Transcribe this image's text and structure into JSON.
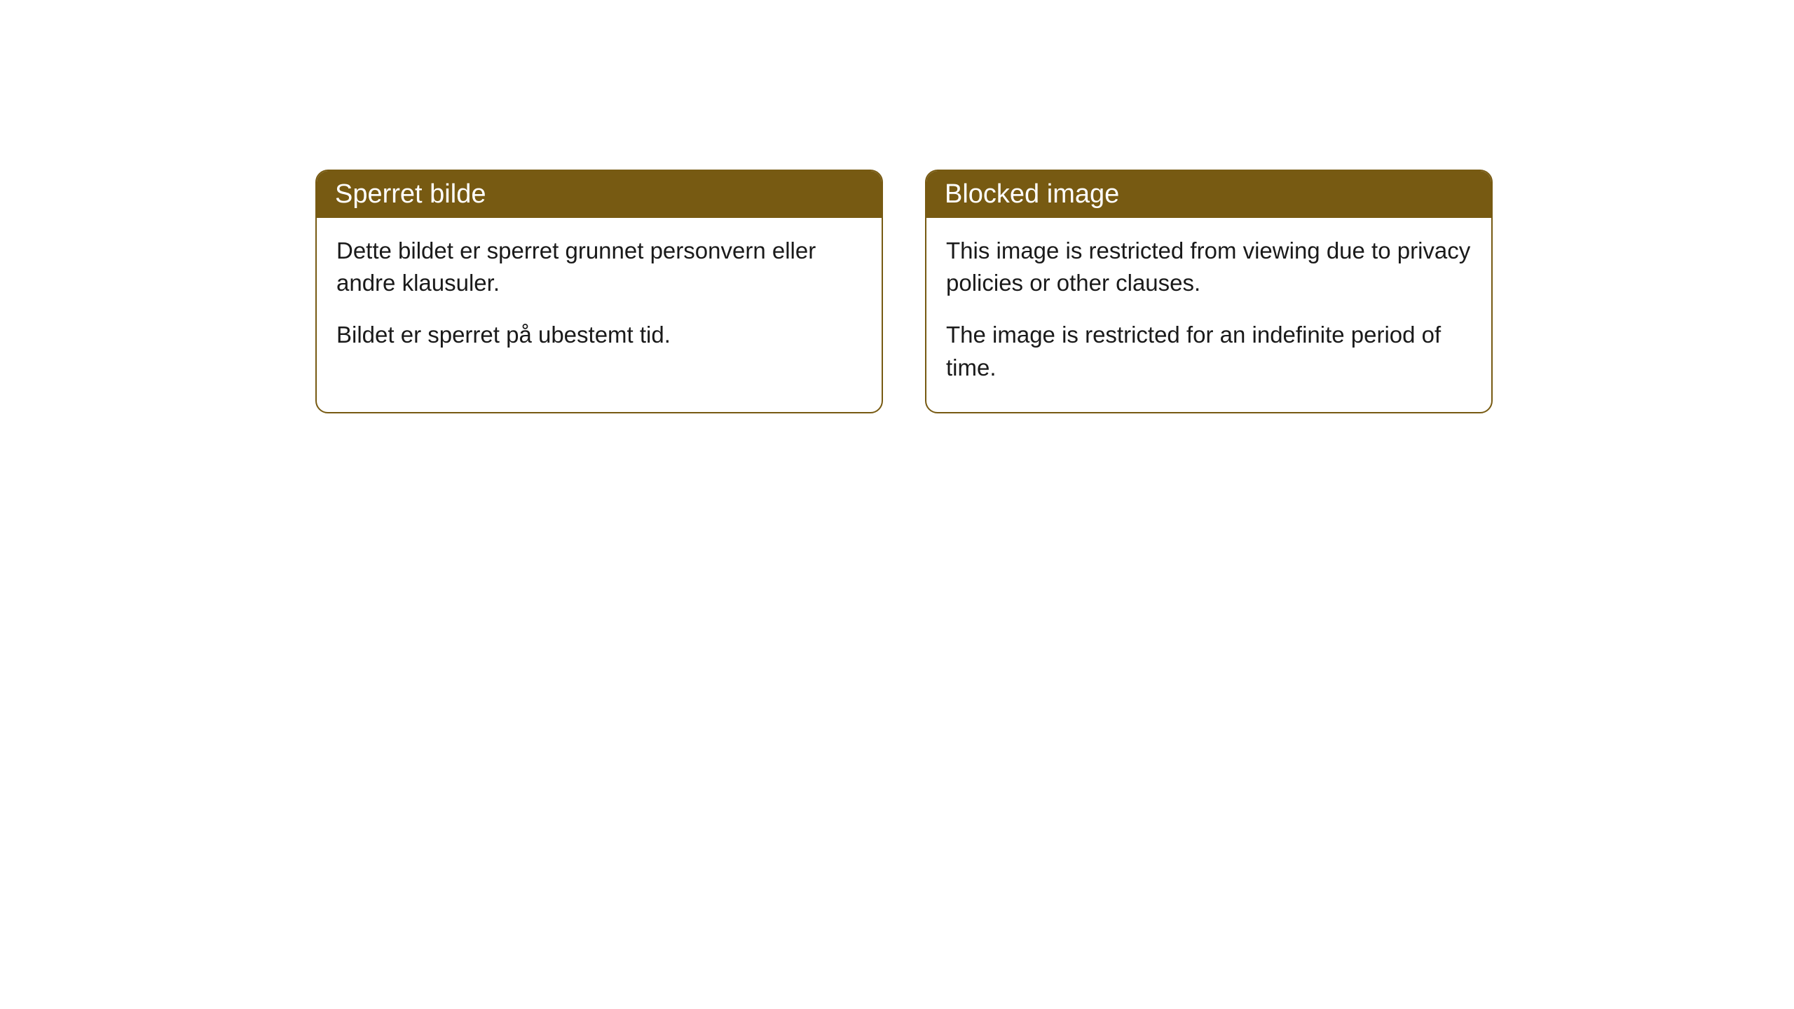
{
  "cards": [
    {
      "title": "Sperret bilde",
      "paragraph1": "Dette bildet er sperret grunnet personvern eller andre klausuler.",
      "paragraph2": "Bildet er sperret på ubestemt tid."
    },
    {
      "title": "Blocked image",
      "paragraph1": "This image is restricted from viewing due to privacy policies or other clauses.",
      "paragraph2": "The image is restricted for an indefinite period of time."
    }
  ],
  "styling": {
    "header_background": "#775a12",
    "header_text_color": "#ffffff",
    "border_color": "#775a12",
    "body_background": "#ffffff",
    "body_text_color": "#1a1a1a",
    "border_radius": 18,
    "title_fontsize": 38,
    "body_fontsize": 33
  }
}
